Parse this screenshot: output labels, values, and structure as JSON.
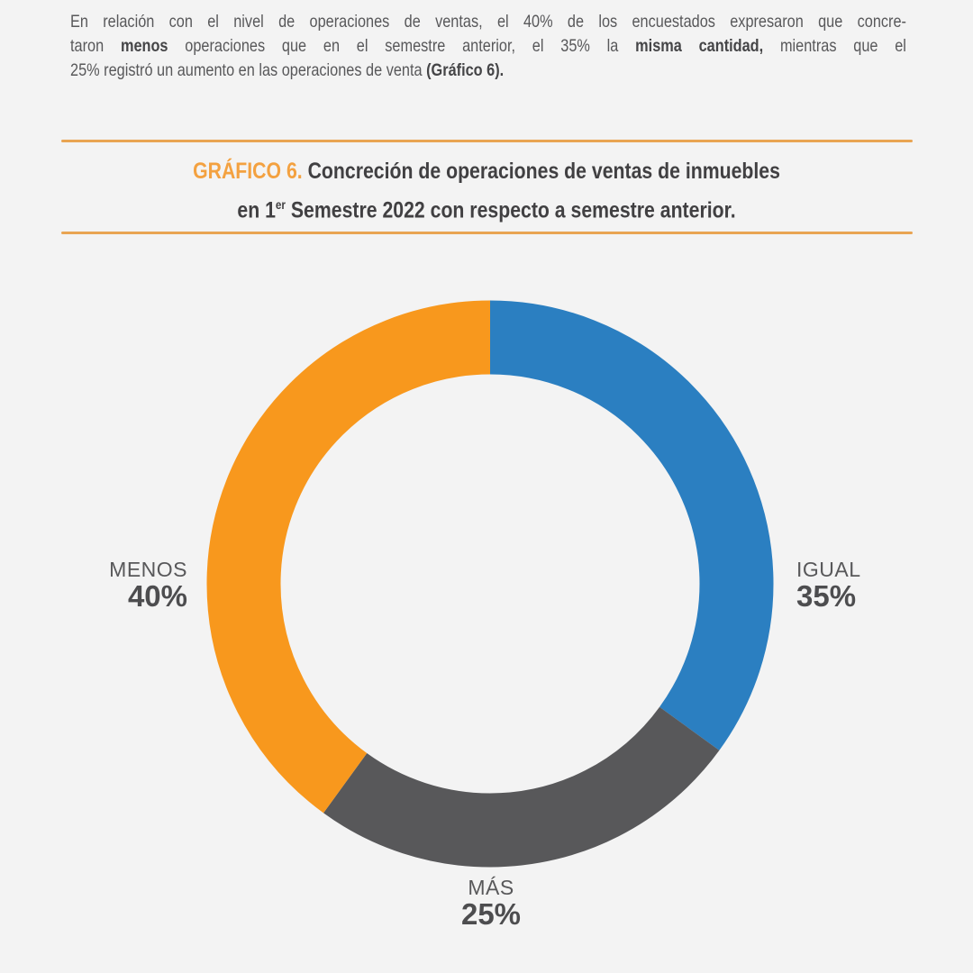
{
  "theme": {
    "bg": "#f3f3f3",
    "ink": "#414042",
    "muted": "#58585a",
    "accent": "#f3a140",
    "rule": "#e9a452",
    "pct_ink": "#4d4d4f"
  },
  "intro": {
    "lines": [
      [
        {
          "t": "En relación con el nivel de operaciones de ventas, el 40% de los encuestados expresaron que concre-"
        }
      ],
      [
        {
          "t": "taron "
        },
        {
          "t": "menos",
          "b": true
        },
        {
          "t": " operaciones que en el semestre anterior, el 35% la "
        },
        {
          "t": "misma cantidad,",
          "b": true
        },
        {
          "t": " mientras que el"
        }
      ],
      [
        {
          "t": "25% registró un aumento en las operaciones de venta "
        },
        {
          "t": "(Gráfico 6).",
          "b": true
        }
      ]
    ]
  },
  "figure_title": {
    "lines": [
      [
        {
          "t": "GRÁFICO 6. ",
          "accent": true
        },
        {
          "t": "Concreción de operaciones de ventas de inmuebles"
        }
      ],
      [
        {
          "t": "en 1"
        },
        {
          "t": "er",
          "sup": true
        },
        {
          "t": " Semestre 2022 con respecto a semestre anterior."
        }
      ]
    ]
  },
  "chart_data": {
    "type": "pie",
    "subtype": "donut",
    "title": "GRÁFICO 6. Concreción de operaciones de ventas de inmuebles en 1er Semestre 2022 con respecto a semestre anterior.",
    "start_angle_deg": 0,
    "direction": "clockwise",
    "inner_radius_ratio": 0.74,
    "slices": [
      {
        "label": "IGUAL",
        "value": 35,
        "pct": "35%",
        "color": "#2b7fc1",
        "label_position": "right"
      },
      {
        "label": "MÁS",
        "value": 25,
        "pct": "25%",
        "color": "#58585a",
        "label_position": "bottom"
      },
      {
        "label": "MENOS",
        "value": 40,
        "pct": "40%",
        "color": "#f8981d",
        "label_position": "left"
      }
    ]
  }
}
